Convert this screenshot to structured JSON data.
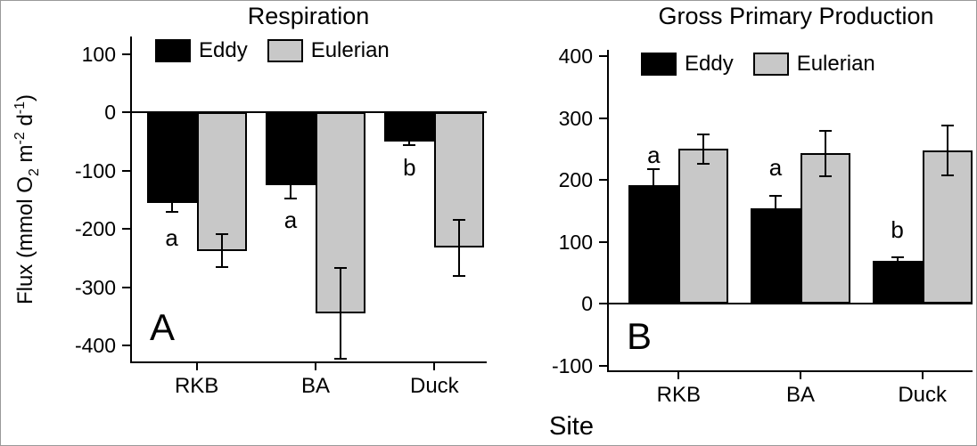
{
  "figure": {
    "site_label": "Site",
    "background_color": "#ffffff"
  },
  "chart_data": [
    {
      "panel_label": "A",
      "type": "bar",
      "title": "Respiration",
      "ylabel_text": "Flux (mmol O2 m-2 d-1)",
      "ylabel_parts": [
        {
          "t": "Flux (mmol O"
        },
        {
          "t": "2",
          "style": "sub"
        },
        {
          "t": " m"
        },
        {
          "t": "-2",
          "style": "sup"
        },
        {
          "t": " d"
        },
        {
          "t": "-1",
          "style": "sup"
        },
        {
          "t": ")"
        }
      ],
      "xlabel": "Site",
      "categories": [
        "RKB",
        "BA",
        "Duck"
      ],
      "series": [
        {
          "name": "Eddy",
          "color": "#000000",
          "values": [
            -155,
            -125,
            -50
          ],
          "errors": [
            15,
            22,
            6
          ]
        },
        {
          "name": "Eulerian",
          "color": "#c8c8c8",
          "values": [
            -237,
            -345,
            -232
          ],
          "errors": [
            28,
            78,
            48
          ]
        }
      ],
      "significance_letters": [
        {
          "category": "RKB",
          "label": "a",
          "y": -215
        },
        {
          "category": "BA",
          "label": "a",
          "y": -185
        },
        {
          "category": "Duck",
          "label": "b",
          "y": -95
        }
      ],
      "ylim": [
        -430,
        130
      ],
      "yticks": [
        100,
        0,
        -100,
        -200,
        -300,
        -400
      ],
      "grid": false,
      "legend_position": "top-inside"
    },
    {
      "panel_label": "B",
      "type": "bar",
      "title": "Gross Primary Production",
      "xlabel": "Site",
      "categories": [
        "RKB",
        "BA",
        "Duck"
      ],
      "series": [
        {
          "name": "Eddy",
          "color": "#000000",
          "values": [
            192,
            155,
            70
          ],
          "errors": [
            25,
            20,
            6
          ]
        },
        {
          "name": "Eulerian",
          "color": "#c8c8c8",
          "values": [
            250,
            243,
            248
          ],
          "errors": [
            24,
            37,
            40
          ]
        }
      ],
      "significance_letters": [
        {
          "category": "RKB",
          "label": "a",
          "y": 240
        },
        {
          "category": "BA",
          "label": "a",
          "y": 220
        },
        {
          "category": "Duck",
          "label": "b",
          "y": 120
        }
      ],
      "ylim": [
        -110,
        410
      ],
      "yticks": [
        400,
        300,
        200,
        100,
        0,
        -100
      ],
      "grid": false,
      "legend_position": "top-inside"
    }
  ]
}
